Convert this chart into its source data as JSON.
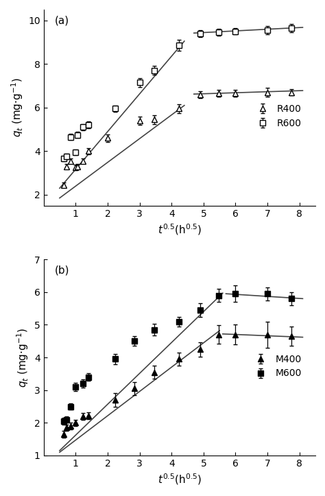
{
  "panel_a": {
    "label": "(a)",
    "R400": {
      "x": [
        0.63,
        0.71,
        0.84,
        1.0,
        1.05,
        1.22,
        1.41,
        2.0,
        3.0,
        3.46,
        4.24,
        4.9,
        5.48,
        6.0,
        7.0,
        7.75
      ],
      "y": [
        2.45,
        3.3,
        3.55,
        3.25,
        3.3,
        3.55,
        4.0,
        4.6,
        5.4,
        5.45,
        5.95,
        6.6,
        6.65,
        6.65,
        6.7,
        6.7
      ],
      "yerr": [
        0.1,
        0.12,
        0.12,
        0.12,
        0.12,
        0.12,
        0.15,
        0.18,
        0.2,
        0.2,
        0.2,
        0.15,
        0.15,
        0.15,
        0.2,
        0.15
      ]
    },
    "R600": {
      "x": [
        0.63,
        0.71,
        0.84,
        1.0,
        1.05,
        1.22,
        1.41,
        2.24,
        3.0,
        3.46,
        4.24,
        4.9,
        5.48,
        6.0,
        7.0,
        7.75
      ],
      "y": [
        3.65,
        3.75,
        4.65,
        3.95,
        4.75,
        5.1,
        5.2,
        5.95,
        7.15,
        7.7,
        8.85,
        9.4,
        9.45,
        9.5,
        9.55,
        9.65
      ],
      "yerr": [
        0.1,
        0.12,
        0.15,
        0.12,
        0.15,
        0.15,
        0.15,
        0.15,
        0.2,
        0.2,
        0.25,
        0.15,
        0.15,
        0.15,
        0.18,
        0.2
      ]
    },
    "fit_R400_rise": {
      "x": [
        0.5,
        4.4
      ],
      "y": [
        1.85,
        6.1
      ]
    },
    "fit_R600_rise": {
      "x": [
        0.5,
        4.4
      ],
      "y": [
        2.3,
        9.05
      ]
    },
    "fit_R400_flat": {
      "x": [
        4.7,
        8.1
      ],
      "y": [
        6.62,
        6.78
      ]
    },
    "fit_R600_flat": {
      "x": [
        4.7,
        8.1
      ],
      "y": [
        9.42,
        9.68
      ]
    },
    "ylim": [
      1.5,
      10.5
    ],
    "yticks": [
      2,
      4,
      6,
      8,
      10
    ],
    "xlim": [
      0,
      8.5
    ],
    "xticks": [
      1,
      2,
      3,
      4,
      5,
      6,
      7,
      8
    ],
    "ylabel": "$q_t$ (mg·g$^{-1}$)",
    "xlabel": "$t^{0.5}$(h$^{0.5}$)"
  },
  "panel_b": {
    "label": "(b)",
    "M400": {
      "x": [
        0.63,
        0.71,
        0.84,
        1.0,
        1.22,
        1.41,
        2.24,
        2.83,
        3.46,
        4.24,
        4.9,
        5.48,
        6.0,
        7.0,
        7.75
      ],
      "y": [
        1.65,
        1.85,
        1.9,
        2.0,
        2.2,
        2.22,
        2.7,
        3.05,
        3.55,
        3.95,
        4.25,
        4.7,
        4.7,
        4.7,
        4.65
      ],
      "yerr": [
        0.1,
        0.1,
        0.1,
        0.1,
        0.1,
        0.1,
        0.2,
        0.2,
        0.2,
        0.2,
        0.22,
        0.28,
        0.3,
        0.4,
        0.3
      ]
    },
    "M600": {
      "x": [
        0.63,
        0.71,
        0.84,
        1.0,
        1.22,
        1.41,
        2.24,
        2.83,
        3.46,
        4.24,
        4.9,
        5.48,
        6.0,
        7.0,
        7.75
      ],
      "y": [
        2.05,
        2.1,
        2.5,
        3.1,
        3.2,
        3.4,
        3.95,
        4.5,
        4.85,
        5.1,
        5.45,
        5.9,
        5.95,
        5.95,
        5.8
      ],
      "yerr": [
        0.1,
        0.1,
        0.1,
        0.12,
        0.12,
        0.12,
        0.15,
        0.15,
        0.18,
        0.15,
        0.2,
        0.2,
        0.25,
        0.2,
        0.2
      ]
    },
    "fit_M400_rise": {
      "x": [
        0.5,
        5.5
      ],
      "y": [
        1.1,
        4.82
      ]
    },
    "fit_M600_rise": {
      "x": [
        0.5,
        5.6
      ],
      "y": [
        1.15,
        5.97
      ]
    },
    "fit_M400_flat": {
      "x": [
        5.6,
        8.1
      ],
      "y": [
        4.72,
        4.62
      ]
    },
    "fit_M600_flat": {
      "x": [
        5.7,
        8.1
      ],
      "y": [
        5.95,
        5.8
      ]
    },
    "ylim": [
      1.0,
      7.0
    ],
    "yticks": [
      1,
      2,
      3,
      4,
      5,
      6,
      7
    ],
    "xlim": [
      0,
      8.5
    ],
    "xticks": [
      1,
      2,
      3,
      4,
      5,
      6,
      7,
      8
    ],
    "ylabel": "$q_t$ (mg·g$^{-1}$)",
    "xlabel": "$t^{0.5}$(h$^{0.5}$)"
  },
  "line_color": "#444444",
  "figure_bg": "#ffffff",
  "fontsize_label": 11,
  "fontsize_tick": 10,
  "fontsize_legend": 10,
  "fontsize_panel_label": 11
}
